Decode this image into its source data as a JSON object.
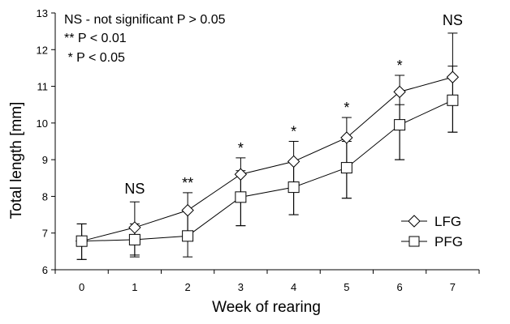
{
  "chart_data": {
    "type": "line",
    "xlabel": "Week of rearing",
    "ylabel": "Total length [mm]",
    "x": [
      0,
      1,
      2,
      3,
      4,
      5,
      6,
      7
    ],
    "xlim": [
      -0.5,
      7.5
    ],
    "ylim": [
      6,
      13
    ],
    "yticks": [
      6,
      7,
      8,
      9,
      10,
      11,
      12,
      13
    ],
    "grid": false,
    "legend_position": "bottom-right",
    "series": [
      {
        "name": "LFG",
        "marker": "diamond",
        "values": [
          6.78,
          7.15,
          7.62,
          8.6,
          8.95,
          9.6,
          10.85,
          11.25
        ],
        "error_low": [
          6.28,
          6.35,
          6.85,
          7.2,
          7.5,
          7.95,
          9.0,
          9.75
        ],
        "error_high": [
          7.25,
          7.85,
          8.1,
          9.05,
          9.5,
          10.15,
          11.3,
          12.45
        ]
      },
      {
        "name": "PFG",
        "marker": "square",
        "values": [
          6.78,
          6.82,
          6.92,
          7.98,
          8.25,
          8.78,
          9.95,
          10.62
        ],
        "error_low": [
          6.28,
          6.4,
          6.35,
          7.2,
          7.5,
          7.95,
          9.0,
          9.75
        ],
        "error_high": [
          7.25,
          7.25,
          7.65,
          8.7,
          8.95,
          9.5,
          10.5,
          11.55
        ]
      }
    ],
    "significance": [
      {
        "x": 1,
        "label": "NS"
      },
      {
        "x": 2,
        "label": "**"
      },
      {
        "x": 3,
        "label": "*"
      },
      {
        "x": 4,
        "label": "*"
      },
      {
        "x": 5,
        "label": "*"
      },
      {
        "x": 6,
        "label": "*"
      },
      {
        "x": 7,
        "label": "NS"
      }
    ],
    "annotations": [
      "NS - not significant P > 0.05",
      "** P < 0.01",
      " * P < 0.05"
    ]
  }
}
